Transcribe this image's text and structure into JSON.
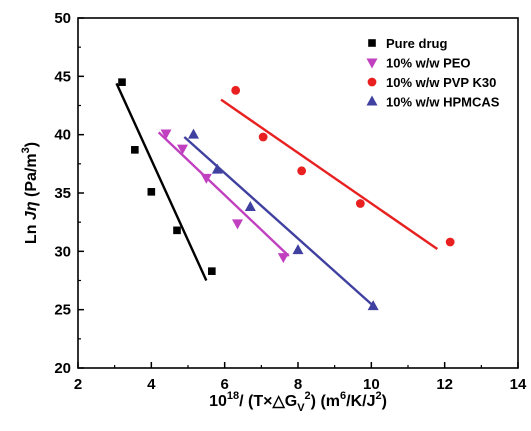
{
  "chart_data": {
    "type": "scatter",
    "xlim": [
      2,
      14
    ],
    "ylim": [
      20,
      50
    ],
    "xticks": [
      "2",
      "4",
      "6",
      "8",
      "10",
      "12",
      "14"
    ],
    "yticks": [
      "20",
      "25",
      "30",
      "35",
      "40",
      "45",
      "50"
    ],
    "xlabel": "10¹⁸/ (T×△G_V²) (m⁶/K/J²)",
    "ylabel": "Ln Jη (Pa/m³)",
    "grid": false,
    "legend_position": "top-right",
    "series": [
      {
        "name": "Pure drug",
        "marker": "square",
        "color": "#000000",
        "points": [
          [
            3.2,
            44.5
          ],
          [
            3.55,
            38.7
          ],
          [
            4.0,
            35.1
          ],
          [
            4.7,
            31.8
          ],
          [
            5.65,
            28.3
          ]
        ],
        "fit": [
          [
            3.05,
            44.4
          ],
          [
            5.5,
            27.5
          ]
        ]
      },
      {
        "name": "10% w/w PEO",
        "marker": "triangle-down",
        "color": "#c040c0",
        "points": [
          [
            4.4,
            40.1
          ],
          [
            4.85,
            38.8
          ],
          [
            5.5,
            36.3
          ],
          [
            6.35,
            32.4
          ],
          [
            7.6,
            29.5
          ]
        ],
        "fit": [
          [
            4.2,
            40.2
          ],
          [
            7.75,
            29.6
          ]
        ]
      },
      {
        "name": "10% w/w PVP K30",
        "marker": "circle",
        "color": "#e82020",
        "points": [
          [
            6.3,
            43.8
          ],
          [
            7.05,
            39.8
          ],
          [
            8.1,
            36.9
          ],
          [
            9.7,
            34.1
          ],
          [
            12.15,
            30.8
          ]
        ],
        "fit": [
          [
            5.9,
            43.0
          ],
          [
            11.8,
            30.2
          ]
        ]
      },
      {
        "name": "10% w/w HPMCAS",
        "marker": "triangle-up",
        "color": "#4040a0",
        "points": [
          [
            5.15,
            40.0
          ],
          [
            5.8,
            37.0
          ],
          [
            6.7,
            33.8
          ],
          [
            8.0,
            30.1
          ],
          [
            10.05,
            25.3
          ]
        ],
        "fit": [
          [
            4.9,
            39.8
          ],
          [
            10.1,
            25.2
          ]
        ]
      }
    ]
  }
}
